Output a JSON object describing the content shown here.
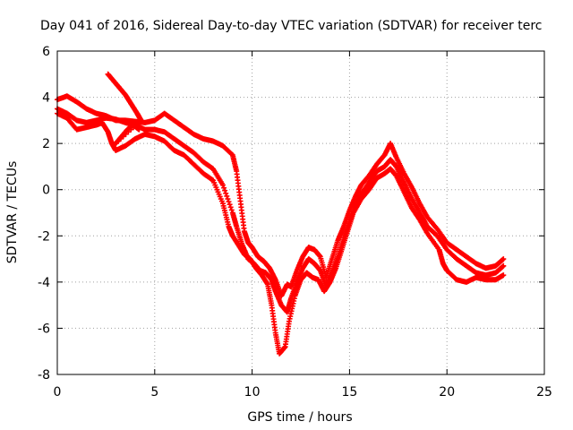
{
  "chart_data": {
    "type": "scatter",
    "title": "Day 041 of 2016, Sidereal Day-to-day VTEC variation (SDTVAR) for receiver terc",
    "xlabel": "GPS time / hours",
    "ylabel": "SDTVAR / TECUs",
    "xlim": [
      0,
      25
    ],
    "ylim": [
      -8,
      6
    ],
    "xticks": [
      "0",
      "5",
      "10",
      "15",
      "20",
      "25"
    ],
    "yticks": [
      "-8",
      "-6",
      "-4",
      "-2",
      "0",
      "2",
      "4",
      "6"
    ],
    "grid": true,
    "marker": "plus",
    "color": "#ff0000",
    "series": [
      {
        "points": [
          [
            0.0,
            3.9
          ],
          [
            0.5,
            4.05
          ],
          [
            1.0,
            3.8
          ],
          [
            1.5,
            3.5
          ],
          [
            2.0,
            3.3
          ],
          [
            2.5,
            3.2
          ],
          [
            3.0,
            3.0
          ],
          [
            3.5,
            3.0
          ],
          [
            4.0,
            2.95
          ],
          [
            4.5,
            2.9
          ],
          [
            5.0,
            3.0
          ],
          [
            5.5,
            3.3
          ],
          [
            6.0,
            3.0
          ],
          [
            6.5,
            2.7
          ],
          [
            7.0,
            2.4
          ],
          [
            7.5,
            2.2
          ],
          [
            8.0,
            2.1
          ],
          [
            8.5,
            1.9
          ],
          [
            9.0,
            1.5
          ],
          [
            9.2,
            0.8
          ],
          [
            9.4,
            -0.5
          ],
          [
            9.6,
            -1.8
          ],
          [
            9.8,
            -2.3
          ],
          [
            10.0,
            -2.5
          ],
          [
            10.3,
            -2.9
          ],
          [
            10.6,
            -3.1
          ],
          [
            10.9,
            -3.4
          ],
          [
            11.2,
            -3.9
          ],
          [
            11.5,
            -4.6
          ],
          [
            11.8,
            -4.1
          ],
          [
            12.0,
            -4.2
          ],
          [
            12.3,
            -3.5
          ],
          [
            12.6,
            -2.9
          ],
          [
            12.9,
            -2.5
          ],
          [
            13.2,
            -2.6
          ],
          [
            13.5,
            -2.9
          ],
          [
            13.8,
            -3.8
          ],
          [
            14.1,
            -3.0
          ],
          [
            14.4,
            -2.2
          ],
          [
            14.7,
            -1.6
          ],
          [
            15.0,
            -0.9
          ],
          [
            15.3,
            -0.3
          ],
          [
            15.6,
            0.2
          ],
          [
            16.0,
            0.6
          ],
          [
            16.4,
            1.1
          ],
          [
            16.8,
            1.5
          ],
          [
            17.1,
            2.0
          ],
          [
            17.4,
            1.4
          ],
          [
            17.8,
            0.7
          ],
          [
            18.2,
            0.1
          ],
          [
            18.6,
            -0.6
          ],
          [
            19.0,
            -1.2
          ],
          [
            19.5,
            -1.7
          ],
          [
            20.0,
            -2.3
          ],
          [
            20.5,
            -2.6
          ],
          [
            21.0,
            -2.9
          ],
          [
            21.5,
            -3.2
          ],
          [
            22.0,
            -3.4
          ],
          [
            22.5,
            -3.3
          ],
          [
            22.9,
            -3.0
          ]
        ]
      },
      {
        "points": [
          [
            0.0,
            3.5
          ],
          [
            0.5,
            3.3
          ],
          [
            1.0,
            3.0
          ],
          [
            1.5,
            2.9
          ],
          [
            2.0,
            3.0
          ],
          [
            2.5,
            3.1
          ],
          [
            3.0,
            3.05
          ],
          [
            3.5,
            2.9
          ],
          [
            4.0,
            2.8
          ],
          [
            4.5,
            2.6
          ],
          [
            5.0,
            2.6
          ],
          [
            5.5,
            2.5
          ],
          [
            6.0,
            2.2
          ],
          [
            6.5,
            1.9
          ],
          [
            7.0,
            1.6
          ],
          [
            7.5,
            1.2
          ],
          [
            8.0,
            0.9
          ],
          [
            8.5,
            0.2
          ],
          [
            9.0,
            -1.0
          ],
          [
            9.2,
            -1.6
          ],
          [
            9.5,
            -2.4
          ],
          [
            9.8,
            -3.0
          ],
          [
            10.1,
            -3.2
          ],
          [
            10.4,
            -3.5
          ],
          [
            10.7,
            -3.6
          ],
          [
            11.0,
            -3.9
          ],
          [
            11.2,
            -4.4
          ],
          [
            11.5,
            -5.0
          ],
          [
            11.8,
            -5.3
          ],
          [
            12.0,
            -4.7
          ],
          [
            12.3,
            -4.0
          ],
          [
            12.6,
            -3.4
          ],
          [
            12.9,
            -3.0
          ],
          [
            13.2,
            -3.2
          ],
          [
            13.5,
            -3.5
          ],
          [
            13.8,
            -4.2
          ],
          [
            14.1,
            -3.6
          ],
          [
            14.4,
            -2.9
          ],
          [
            14.7,
            -2.1
          ],
          [
            15.0,
            -1.4
          ],
          [
            15.3,
            -0.7
          ],
          [
            15.6,
            -0.2
          ],
          [
            16.0,
            0.3
          ],
          [
            16.4,
            0.8
          ],
          [
            16.8,
            1.0
          ],
          [
            17.1,
            1.3
          ],
          [
            17.4,
            1.0
          ],
          [
            17.8,
            0.3
          ],
          [
            18.2,
            -0.4
          ],
          [
            18.6,
            -1.0
          ],
          [
            19.0,
            -1.6
          ],
          [
            19.5,
            -2.0
          ],
          [
            20.0,
            -2.6
          ],
          [
            20.5,
            -3.0
          ],
          [
            21.0,
            -3.3
          ],
          [
            21.5,
            -3.6
          ],
          [
            22.0,
            -3.7
          ],
          [
            22.5,
            -3.6
          ],
          [
            22.9,
            -3.3
          ]
        ]
      },
      {
        "points": [
          [
            0.0,
            3.3
          ],
          [
            0.5,
            3.1
          ],
          [
            1.0,
            2.6
          ],
          [
            1.5,
            2.7
          ],
          [
            2.0,
            2.8
          ],
          [
            2.3,
            2.9
          ],
          [
            2.6,
            2.5
          ],
          [
            2.8,
            2.0
          ],
          [
            3.0,
            1.7
          ],
          [
            3.5,
            1.9
          ],
          [
            4.0,
            2.2
          ],
          [
            4.5,
            2.4
          ],
          [
            5.0,
            2.3
          ],
          [
            5.5,
            2.1
          ],
          [
            6.0,
            1.7
          ],
          [
            6.5,
            1.5
          ],
          [
            7.0,
            1.1
          ],
          [
            7.5,
            0.7
          ],
          [
            8.0,
            0.4
          ],
          [
            8.5,
            -0.6
          ],
          [
            8.8,
            -1.6
          ],
          [
            9.0,
            -2.0
          ],
          [
            9.3,
            -2.4
          ],
          [
            9.6,
            -2.8
          ],
          [
            9.9,
            -3.0
          ],
          [
            10.2,
            -3.4
          ],
          [
            10.5,
            -3.7
          ],
          [
            10.8,
            -4.1
          ],
          [
            11.0,
            -5.0
          ],
          [
            11.2,
            -6.2
          ],
          [
            11.4,
            -7.1
          ],
          [
            11.7,
            -6.8
          ],
          [
            11.9,
            -5.7
          ],
          [
            12.2,
            -4.6
          ],
          [
            12.5,
            -3.9
          ],
          [
            12.8,
            -3.6
          ],
          [
            13.1,
            -3.8
          ],
          [
            13.4,
            -3.9
          ],
          [
            13.7,
            -4.4
          ],
          [
            14.0,
            -4.0
          ],
          [
            14.3,
            -3.4
          ],
          [
            14.6,
            -2.6
          ],
          [
            14.9,
            -1.8
          ],
          [
            15.2,
            -1.0
          ],
          [
            15.6,
            -0.4
          ],
          [
            16.0,
            0.0
          ],
          [
            16.4,
            0.5
          ],
          [
            16.8,
            0.7
          ],
          [
            17.1,
            0.9
          ],
          [
            17.4,
            0.6
          ],
          [
            17.8,
            -0.1
          ],
          [
            18.2,
            -0.8
          ],
          [
            18.6,
            -1.3
          ],
          [
            19.0,
            -1.9
          ],
          [
            19.6,
            -2.6
          ],
          [
            19.8,
            -3.2
          ],
          [
            20.0,
            -3.5
          ],
          [
            20.5,
            -3.9
          ],
          [
            21.0,
            -4.0
          ],
          [
            21.5,
            -3.8
          ],
          [
            22.0,
            -3.9
          ],
          [
            22.5,
            -3.9
          ],
          [
            22.9,
            -3.7
          ]
        ]
      },
      {
        "points": [
          [
            2.6,
            5.0
          ],
          [
            2.9,
            4.7
          ],
          [
            3.2,
            4.4
          ],
          [
            3.5,
            4.1
          ],
          [
            3.8,
            3.7
          ],
          [
            4.1,
            3.3
          ],
          [
            4.3,
            3.0
          ],
          [
            3.0,
            2.0
          ],
          [
            3.3,
            2.3
          ],
          [
            3.6,
            2.6
          ],
          [
            3.9,
            2.8
          ],
          [
            4.2,
            2.6
          ]
        ]
      }
    ]
  }
}
